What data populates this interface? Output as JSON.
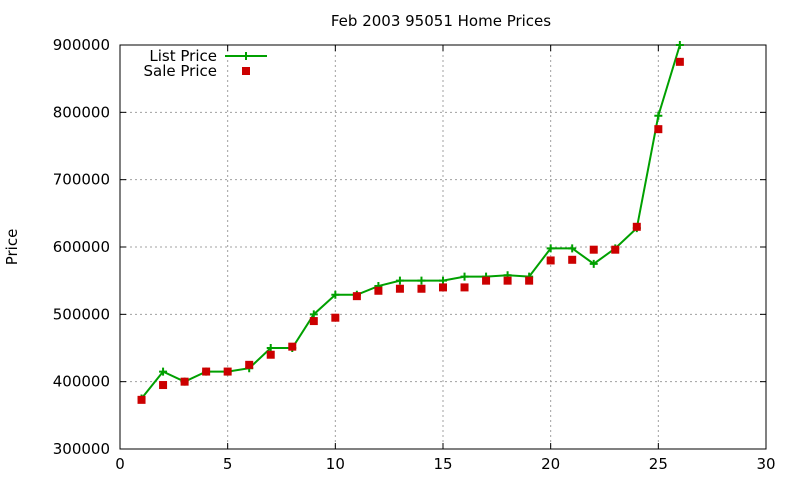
{
  "chart_data": {
    "type": "line",
    "title": "Feb 2003 95051 Home Prices",
    "xlabel": "",
    "ylabel": "Price",
    "xlim": [
      0,
      30
    ],
    "ylim": [
      300000,
      900000
    ],
    "x_ticks": [
      0,
      5,
      10,
      15,
      20,
      25,
      30
    ],
    "y_ticks": [
      300000,
      400000,
      500000,
      600000,
      700000,
      800000,
      900000
    ],
    "grid": true,
    "legend_position": "top-left",
    "series": [
      {
        "name": "List Price",
        "style": "line+cross",
        "color": "#00a000",
        "x": [
          1,
          2,
          3,
          4,
          5,
          6,
          7,
          8,
          9,
          10,
          11,
          12,
          13,
          14,
          15,
          16,
          17,
          18,
          19,
          20,
          21,
          22,
          23,
          24,
          25,
          26
        ],
        "y": [
          375000,
          415000,
          400000,
          415000,
          415000,
          420000,
          450000,
          450000,
          500000,
          529000,
          529000,
          542000,
          550000,
          550000,
          550000,
          556000,
          556000,
          558000,
          556000,
          598000,
          598000,
          575000,
          598000,
          628000,
          795000,
          900000
        ]
      },
      {
        "name": "Sale Price",
        "style": "square",
        "color": "#cc0000",
        "x": [
          1,
          2,
          3,
          4,
          5,
          6,
          7,
          8,
          9,
          10,
          11,
          12,
          13,
          14,
          15,
          16,
          17,
          18,
          19,
          20,
          21,
          22,
          23,
          24,
          25,
          26
        ],
        "y": [
          373000,
          395000,
          400000,
          415000,
          415000,
          425000,
          440000,
          452000,
          490000,
          495000,
          527000,
          535000,
          538000,
          538000,
          540000,
          540000,
          550000,
          550000,
          550000,
          580000,
          581000,
          596000,
          596000,
          630000,
          775000,
          875000
        ]
      }
    ]
  }
}
